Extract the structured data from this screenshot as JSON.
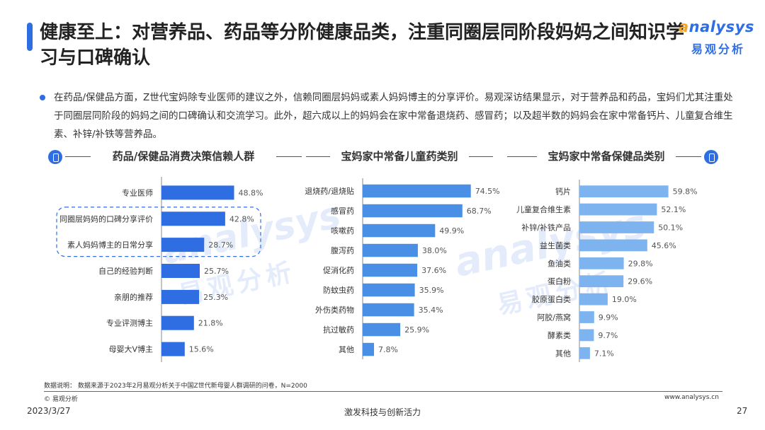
{
  "header": {
    "title": "健康至上：对营养品、药品等分阶健康品类，注重同圈层同阶段妈妈之间知识学习与口碑确认"
  },
  "logo": {
    "en_prefix": "a",
    "en_rest": "nalysys",
    "cn": "易观分析"
  },
  "intro": "在药品/保健品方面，Z世代宝妈除专业医师的建议之外，信赖同圈层妈妈或素人妈妈博主的分享评价。易观深访结果显示，对于营养品和药品，宝妈们尤其注重处于同圈层同阶段的妈妈之间的口碑确认和交流学习。此外，超六成以上的妈妈会在家中常备退烧药、感冒药；以及超半数的妈妈会在家中常备钙片、儿童复合维生素、补锌/补铁等营养品。",
  "watermark": {
    "en": "analysys",
    "cn": "易观分析"
  },
  "chart_data": [
    {
      "type": "bar",
      "orientation": "horizontal",
      "title": "药品/保健品消费决策信赖人群",
      "categories": [
        "专业医师",
        "同圈层妈妈的口碑分享评价",
        "素人妈妈博主的日常分享",
        "自己的经验判断",
        "亲朋的推荐",
        "专业评测博主",
        "母婴大V博主"
      ],
      "values": [
        48.8,
        42.8,
        28.7,
        25.7,
        25.3,
        21.8,
        15.6
      ],
      "value_labels": [
        "48.8%",
        "42.8%",
        "28.7%",
        "25.7%",
        "25.3%",
        "21.8%",
        "15.6%"
      ],
      "highlighted_categories": [
        "同圈层妈妈的口碑分享评价",
        "素人妈妈博主的日常分享"
      ],
      "color": "#2f6ee2",
      "xlim": [
        0,
        100
      ]
    },
    {
      "type": "bar",
      "orientation": "horizontal",
      "title": "宝妈家中常备儿童药类别",
      "categories": [
        "退烧药/退烧贴",
        "感冒药",
        "咳嗽药",
        "腹泻药",
        "促消化药",
        "防蚊虫药",
        "外伤类药物",
        "抗过敏药",
        "其他"
      ],
      "values": [
        74.5,
        68.7,
        49.9,
        38.0,
        37.6,
        35.9,
        35.4,
        25.9,
        7.8
      ],
      "value_labels": [
        "74.5%",
        "68.7%",
        "49.9%",
        "38.0%",
        "37.6%",
        "35.9%",
        "35.4%",
        "25.9%",
        "7.8%"
      ],
      "color": "#4a8fe6",
      "xlim": [
        0,
        100
      ]
    },
    {
      "type": "bar",
      "orientation": "horizontal",
      "title": "宝妈家中常备保健品类别",
      "categories": [
        "钙片",
        "儿童复合维生素",
        "补锌/补铁产品",
        "益生菌类",
        "鱼油类",
        "蛋白粉",
        "胶原蛋白类",
        "阿胶/燕窝",
        "酵素类",
        "其他"
      ],
      "values": [
        59.8,
        52.1,
        50.1,
        45.6,
        29.8,
        29.6,
        19.0,
        9.9,
        9.7,
        7.1
      ],
      "value_labels": [
        "59.8%",
        "52.1%",
        "50.1%",
        "45.6%",
        "29.8%",
        "29.6%",
        "19.0%",
        "9.9%",
        "9.7%",
        "7.1%"
      ],
      "color": "#7db4f0",
      "xlim": [
        0,
        100
      ]
    }
  ],
  "footer": {
    "note": "数据说明： 数据来源于2023年2月易观分析关于中国Z世代新母婴人群调研的问卷，N=2000",
    "copyright": "© 易观分析",
    "site": "www.analysys.cn",
    "date": "2023/3/27",
    "slogan": "激发科技与创新活力",
    "page": "27"
  }
}
